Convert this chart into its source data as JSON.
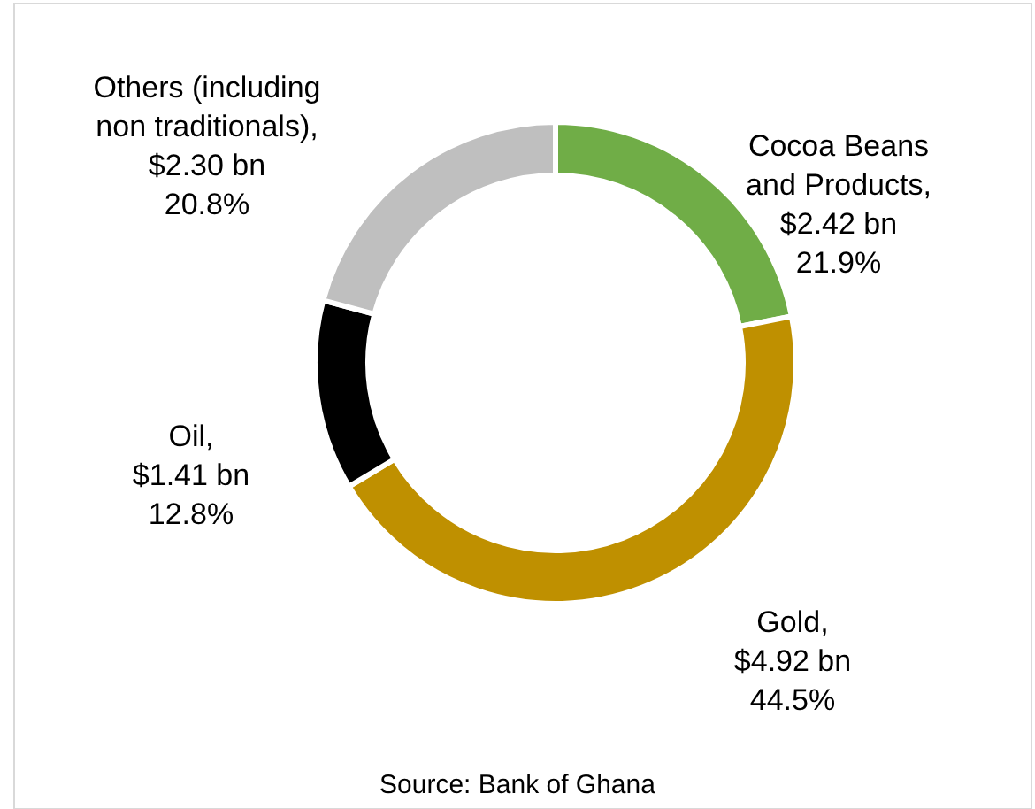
{
  "chart_data": {
    "type": "donut",
    "categories": [
      "Cocoa Beans and Products",
      "Gold",
      "Oil",
      "Others (including non traditionals)"
    ],
    "values": [
      2.42,
      4.92,
      1.41,
      2.3
    ],
    "colors": [
      "#70ad47",
      "#bf9000",
      "#000000",
      "#bfbfbf"
    ],
    "value_labels": [
      ",\n$2.42 bn",
      ",\n$4.92 bn",
      ",\n$1.41 bn",
      ",\n$2.30 bn"
    ],
    "annotations": [
      {
        "text": "21.9%",
        "x": "Cocoa Beans and Products"
      },
      {
        "text": "44.5%",
        "x": "Gold"
      },
      {
        "text": "12.8%",
        "x": "Oil"
      },
      {
        "text": "20.8%",
        "x": "Others (including non traditionals)"
      },
      "Source: Bank of Ghana"
    ]
  }
}
